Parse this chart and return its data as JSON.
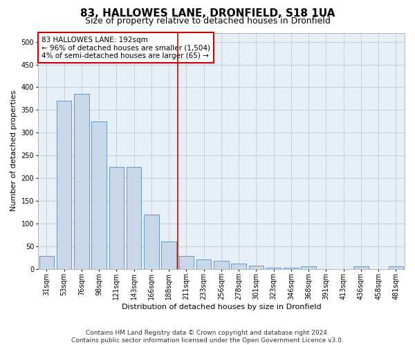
{
  "title": "83, HALLOWES LANE, DRONFIELD, S18 1UA",
  "subtitle": "Size of property relative to detached houses in Dronfield",
  "xlabel": "Distribution of detached houses by size in Dronfield",
  "ylabel": "Number of detached properties",
  "footer_line1": "Contains HM Land Registry data © Crown copyright and database right 2024.",
  "footer_line2": "Contains public sector information licensed under the Open Government Licence v3.0.",
  "annotation_title": "83 HALLOWES LANE: 192sqm",
  "annotation_line1": "← 96% of detached houses are smaller (1,504)",
  "annotation_line2": "4% of semi-detached houses are larger (65) →",
  "bar_labels": [
    "31sqm",
    "53sqm",
    "76sqm",
    "98sqm",
    "121sqm",
    "143sqm",
    "166sqm",
    "188sqm",
    "211sqm",
    "233sqm",
    "256sqm",
    "278sqm",
    "301sqm",
    "323sqm",
    "346sqm",
    "368sqm",
    "391sqm",
    "413sqm",
    "436sqm",
    "458sqm",
    "481sqm"
  ],
  "bar_values": [
    28,
    370,
    385,
    325,
    225,
    225,
    120,
    60,
    28,
    20,
    18,
    12,
    7,
    3,
    3,
    5,
    0,
    0,
    5,
    0,
    5
  ],
  "bar_color": "#c8d8e8",
  "bar_edge_color": "#5a8ab5",
  "vline_color": "#cc0000",
  "vline_x_index": 7,
  "ylim": [
    0,
    520
  ],
  "yticks": [
    0,
    50,
    100,
    150,
    200,
    250,
    300,
    350,
    400,
    450,
    500
  ],
  "grid_color": "#c0c8d8",
  "bg_color": "#e8eef5",
  "annotation_box_color": "#cc0000",
  "title_fontsize": 11,
  "subtitle_fontsize": 9,
  "axis_label_fontsize": 8,
  "tick_fontsize": 7,
  "annotation_fontsize": 7.5,
  "footer_fontsize": 6.5
}
